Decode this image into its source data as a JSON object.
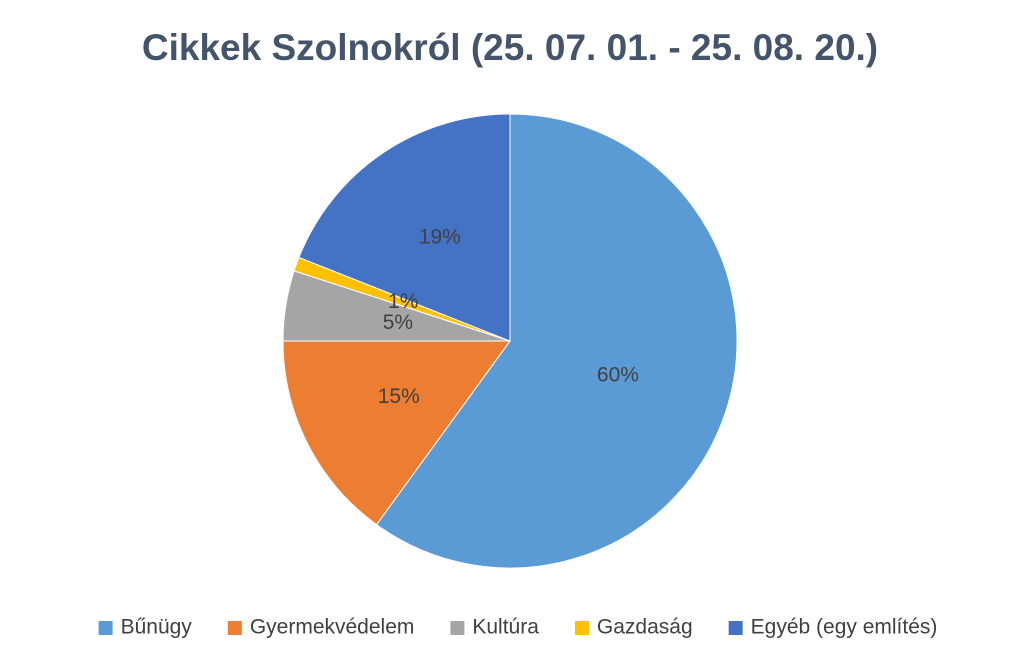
{
  "chart_data": {
    "type": "pie",
    "title": "Cikkek Szolnokról (25. 07. 01. - 25. 08. 20.)",
    "categories": [
      "Bűnügy",
      "Gyermekvédelem",
      "Kultúra",
      "Gazdaság",
      "Egyéb (egy említés)"
    ],
    "values": [
      60,
      15,
      5,
      1,
      19
    ],
    "value_labels": [
      "60%",
      "15%",
      "5%",
      "1%",
      "19%"
    ],
    "colors": [
      "#5b9bd5",
      "#ed7d31",
      "#a5a5a5",
      "#ffc000",
      "#4472c4"
    ],
    "legend": "bottom"
  }
}
